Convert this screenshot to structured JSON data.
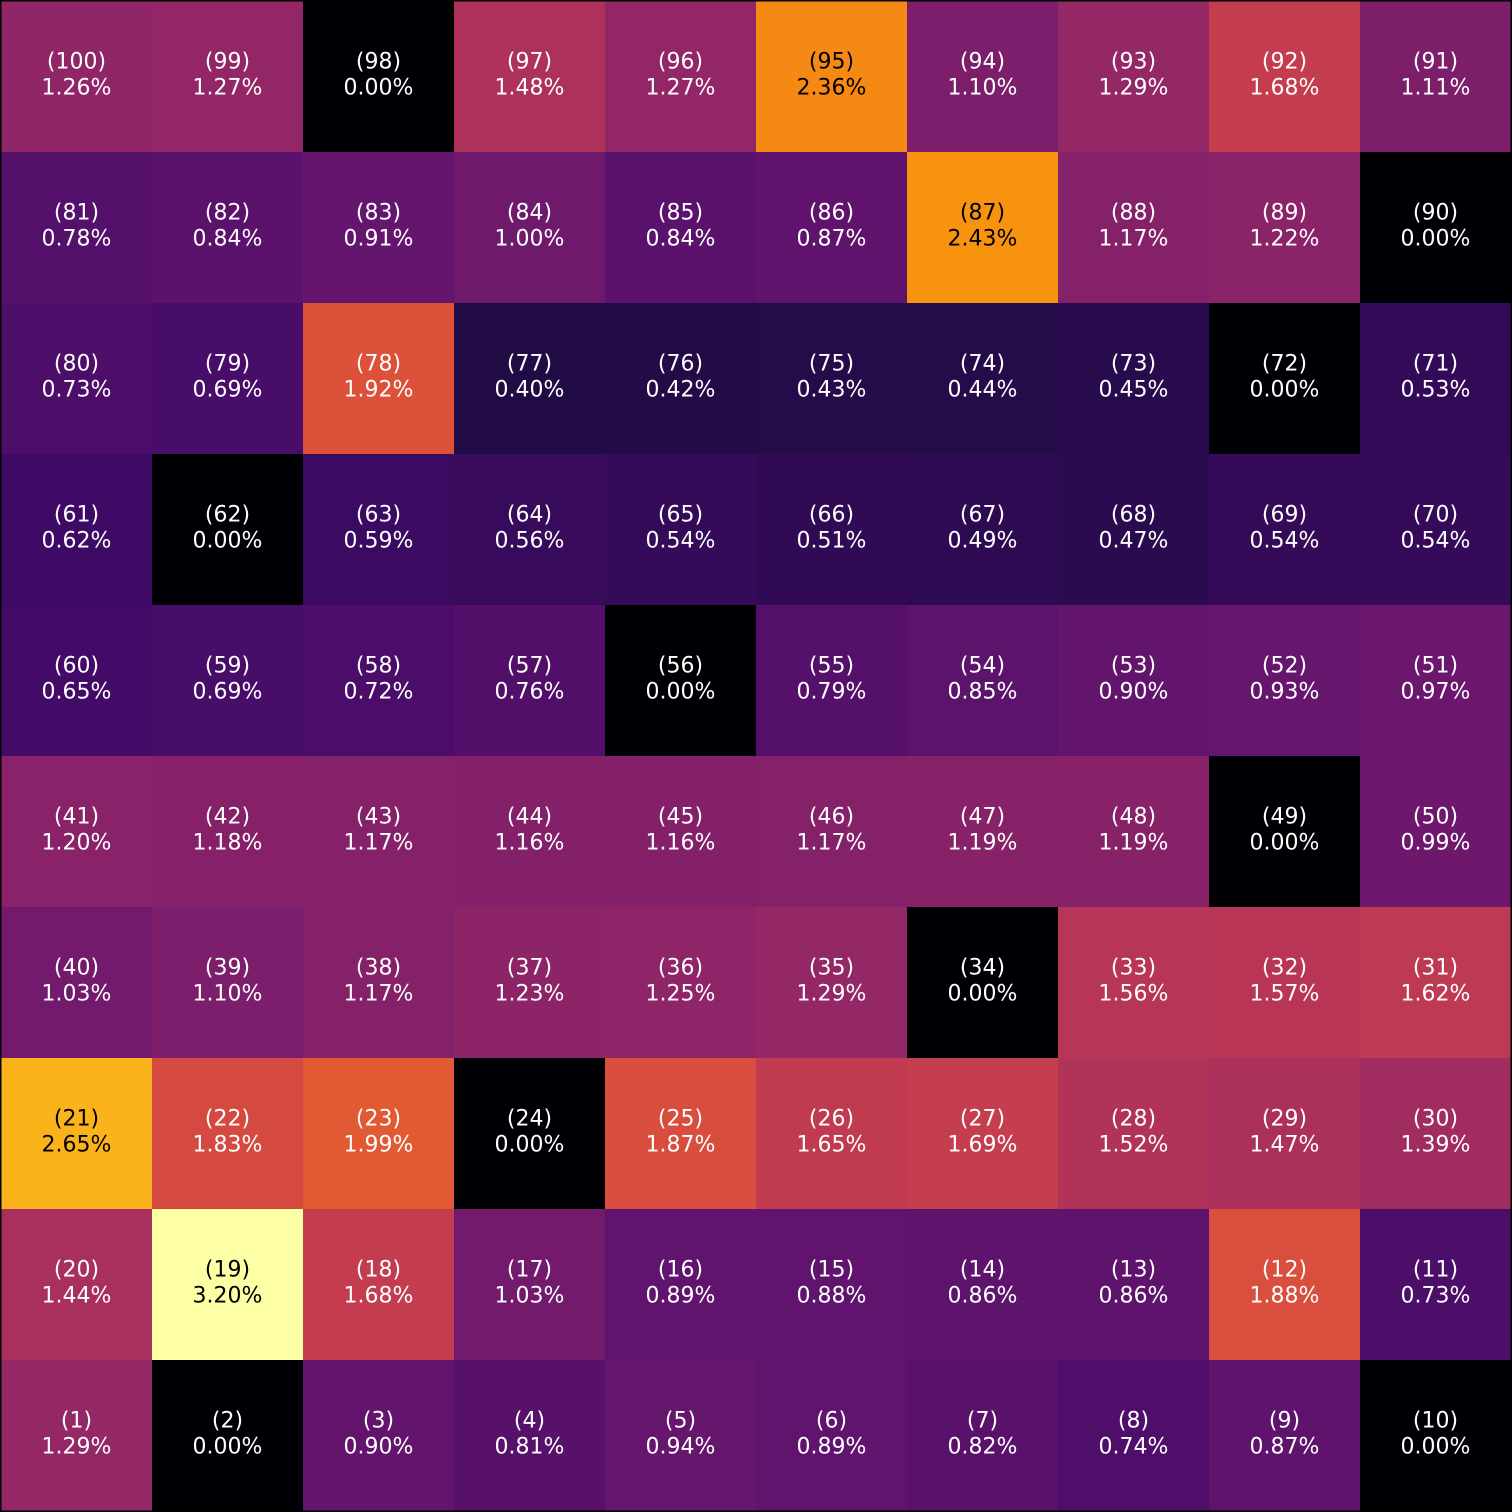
{
  "chart_data": {
    "type": "heatmap",
    "colormap": "inferno",
    "rows": [
      {
        "labels": [
          "(100)",
          "(99)",
          "(98)",
          "(97)",
          "(96)",
          "(95)",
          "(94)",
          "(93)",
          "(92)",
          "(91)"
        ],
        "values": [
          1.26,
          1.27,
          0,
          1.48,
          1.27,
          2.36,
          1.1,
          1.29,
          1.68,
          1.11
        ],
        "value_labels": [
          "1.26%",
          "1.27%",
          "0.00%",
          "1.48%",
          "1.27%",
          "2.36%",
          "1.10%",
          "1.29%",
          "1.68%",
          "1.11%"
        ]
      },
      {
        "labels": [
          "(81)",
          "(82)",
          "(83)",
          "(84)",
          "(85)",
          "(86)",
          "(87)",
          "(88)",
          "(89)",
          "(90)"
        ],
        "values": [
          0.78,
          0.84,
          0.91,
          1.0,
          0.84,
          0.87,
          2.43,
          1.17,
          1.22,
          0
        ],
        "value_labels": [
          "0.78%",
          "0.84%",
          "0.91%",
          "1.00%",
          "0.84%",
          "0.87%",
          "2.43%",
          "1.17%",
          "1.22%",
          "0.00%"
        ]
      },
      {
        "labels": [
          "(80)",
          "(79)",
          "(78)",
          "(77)",
          "(76)",
          "(75)",
          "(74)",
          "(73)",
          "(72)",
          "(71)"
        ],
        "values": [
          0.73,
          0.69,
          1.92,
          0.4,
          0.42,
          0.43,
          0.44,
          0.45,
          0,
          0.53
        ],
        "value_labels": [
          "0.73%",
          "0.69%",
          "1.92%",
          "0.40%",
          "0.42%",
          "0.43%",
          "0.44%",
          "0.45%",
          "0.00%",
          "0.53%"
        ]
      },
      {
        "labels": [
          "(61)",
          "(62)",
          "(63)",
          "(64)",
          "(65)",
          "(66)",
          "(67)",
          "(68)",
          "(69)",
          "(70)"
        ],
        "values": [
          0.62,
          0,
          0.59,
          0.56,
          0.54,
          0.51,
          0.49,
          0.47,
          0.54,
          0.54
        ],
        "value_labels": [
          "0.62%",
          "0.00%",
          "0.59%",
          "0.56%",
          "0.54%",
          "0.51%",
          "0.49%",
          "0.47%",
          "0.54%",
          "0.54%"
        ]
      },
      {
        "labels": [
          "(60)",
          "(59)",
          "(58)",
          "(57)",
          "(56)",
          "(55)",
          "(54)",
          "(53)",
          "(52)",
          "(51)"
        ],
        "values": [
          0.65,
          0.69,
          0.72,
          0.76,
          0,
          0.79,
          0.85,
          0.9,
          0.93,
          0.97
        ],
        "value_labels": [
          "0.65%",
          "0.69%",
          "0.72%",
          "0.76%",
          "0.00%",
          "0.79%",
          "0.85%",
          "0.90%",
          "0.93%",
          "0.97%"
        ]
      },
      {
        "labels": [
          "(41)",
          "(42)",
          "(43)",
          "(44)",
          "(45)",
          "(46)",
          "(47)",
          "(48)",
          "(49)",
          "(50)"
        ],
        "values": [
          1.2,
          1.18,
          1.17,
          1.16,
          1.16,
          1.17,
          1.19,
          1.19,
          0,
          0.99
        ],
        "value_labels": [
          "1.20%",
          "1.18%",
          "1.17%",
          "1.16%",
          "1.16%",
          "1.17%",
          "1.19%",
          "1.19%",
          "0.00%",
          "0.99%"
        ]
      },
      {
        "labels": [
          "(40)",
          "(39)",
          "(38)",
          "(37)",
          "(36)",
          "(35)",
          "(34)",
          "(33)",
          "(32)",
          "(31)"
        ],
        "values": [
          1.03,
          1.1,
          1.17,
          1.23,
          1.25,
          1.29,
          0,
          1.56,
          1.57,
          1.62
        ],
        "value_labels": [
          "1.03%",
          "1.10%",
          "1.17%",
          "1.23%",
          "1.25%",
          "1.29%",
          "0.00%",
          "1.56%",
          "1.57%",
          "1.62%"
        ]
      },
      {
        "labels": [
          "(21)",
          "(22)",
          "(23)",
          "(24)",
          "(25)",
          "(26)",
          "(27)",
          "(28)",
          "(29)",
          "(30)"
        ],
        "values": [
          2.65,
          1.83,
          1.99,
          0,
          1.87,
          1.65,
          1.69,
          1.52,
          1.47,
          1.39
        ],
        "value_labels": [
          "2.65%",
          "1.83%",
          "1.99%",
          "0.00%",
          "1.87%",
          "1.65%",
          "1.69%",
          "1.52%",
          "1.47%",
          "1.39%"
        ]
      },
      {
        "labels": [
          "(20)",
          "(19)",
          "(18)",
          "(17)",
          "(16)",
          "(15)",
          "(14)",
          "(13)",
          "(12)",
          "(11)"
        ],
        "values": [
          1.44,
          3.2,
          1.68,
          1.03,
          0.89,
          0.88,
          0.86,
          0.86,
          1.88,
          0.73
        ],
        "value_labels": [
          "1.44%",
          "3.20%",
          "1.68%",
          "1.03%",
          "0.89%",
          "0.88%",
          "0.86%",
          "0.86%",
          "1.88%",
          "0.73%"
        ]
      },
      {
        "labels": [
          "(1)",
          "(2)",
          "(3)",
          "(4)",
          "(5)",
          "(6)",
          "(7)",
          "(8)",
          "(9)",
          "(10)"
        ],
        "values": [
          1.29,
          0,
          0.9,
          0.81,
          0.94,
          0.89,
          0.82,
          0.74,
          0.87,
          0
        ],
        "value_labels": [
          "1.29%",
          "0.00%",
          "0.90%",
          "0.81%",
          "0.94%",
          "0.89%",
          "0.82%",
          "0.74%",
          "0.87%",
          "0.00%"
        ]
      }
    ]
  }
}
